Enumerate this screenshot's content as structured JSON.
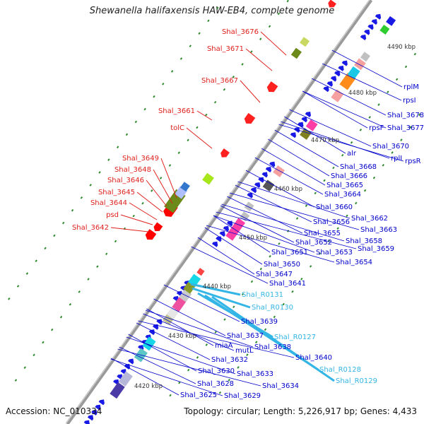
{
  "title": "Shewanella halifaxensis HAW-EB4, complete genome",
  "footer": {
    "accession": "Accession: NC_010334",
    "topology": "Topology: circular; Length: 5,226,917 bp; Genes: 4,433"
  },
  "colors": {
    "backbone": "#9a9a9a",
    "left_label": "#e0201c",
    "right_label": "#0000cc",
    "rna_label": "#33b5e5",
    "kbp_label": "#333333",
    "dots": "#2d8a2d"
  },
  "kbp_marks": [
    "4420 kbp",
    "4430 kbp",
    "4440 kbp",
    "4450 kbp",
    "4460 kbp",
    "4470 kbp",
    "4480 kbp",
    "4490 kbp"
  ],
  "left_labels": [
    "Shal_3676",
    "Shal_3671",
    "Shal_3667",
    "Shal_3661",
    "tolC",
    "Shal_3649",
    "Shal_3648",
    "Shal_3646",
    "Shal_3645",
    "Shal_3644",
    "psd",
    "Shal_3642"
  ],
  "right_labels": [
    "rplM",
    "rpsI",
    "Shal_3678",
    "Shal_3677",
    "rpsF",
    "Shal_3670",
    "rplI",
    "rpsR",
    "alr",
    "Shal_3668",
    "Shal_3666",
    "Shal_3665",
    "Shal_3664",
    "Shal_3660",
    "Shal_3662",
    "Shal_3663",
    "Shal_3656",
    "Shal_3655",
    "Shal_3658",
    "Shal_3652",
    "Shal_3659",
    "Shal_3653",
    "Shal_3651",
    "Shal_3654",
    "Shal_3650",
    "Shal_3647",
    "Shal_3641",
    "Shal_3639",
    "Shal_3637",
    "Shal_3638",
    "miaA",
    "mutL",
    "Shal_3640",
    "Shal_3632",
    "Shal_3630",
    "Shal_3633",
    "Shal_3628",
    "Shal_3634",
    "Shal_3625",
    "Shal_3629"
  ],
  "rna_labels": [
    "Shal_R0131",
    "Shal_R0130",
    "Shal_R0127",
    "Shal_R0128",
    "Shal_R0129"
  ]
}
